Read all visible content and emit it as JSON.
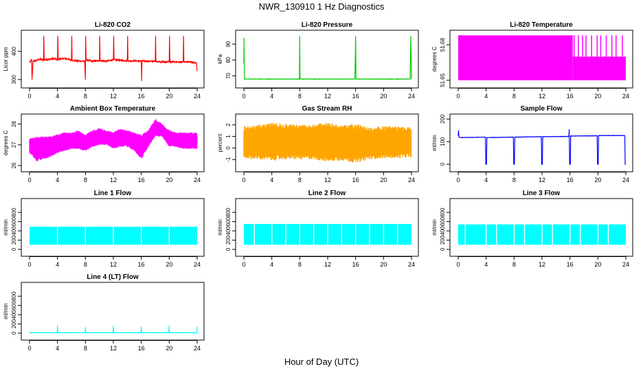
{
  "page": {
    "title": "NWR_130910  1 Hz Diagnostics",
    "xlabel": "Hour of Day (UTC)"
  },
  "chart_data": [
    {
      "type": "line",
      "title": "Li-820 CO2",
      "ylabel": "Licor ppm",
      "xlim": [
        0,
        24
      ],
      "x_ticks": [
        0,
        4,
        8,
        12,
        16,
        20,
        24
      ],
      "ylim": [
        285,
        465
      ],
      "y_ticks": [
        300,
        400
      ],
      "color": "#ff0000",
      "series": [
        {
          "x": [
            0,
            0.3,
            0.35,
            0.5,
            1.0,
            1.5,
            2.0,
            2.05,
            2.1,
            3.0,
            3.5,
            4.0,
            4.05,
            4.1,
            5.0,
            6.0,
            6.05,
            6.1,
            7.0,
            7.9,
            8.0,
            8.05,
            8.1,
            9.0,
            10.0,
            10.05,
            10.1,
            11.0,
            12.0,
            12.05,
            12.1,
            13.0,
            14.0,
            14.05,
            14.1,
            15.0,
            16.0,
            16.05,
            16.1,
            17.0,
            18.0,
            18.05,
            18.1,
            19.0,
            20.0,
            20.05,
            20.1,
            21.0,
            22.0,
            22.05,
            22.1,
            23.0,
            23.9,
            24.0
          ],
          "y": [
            360,
            370,
            300,
            365,
            368,
            372,
            370,
            455,
            370,
            372,
            375,
            370,
            455,
            372,
            375,
            370,
            455,
            368,
            366,
            365,
            300,
            455,
            370,
            365,
            367,
            455,
            367,
            365,
            370,
            455,
            370,
            368,
            367,
            455,
            366,
            367,
            365,
            295,
            366,
            365,
            365,
            455,
            365,
            362,
            363,
            455,
            363,
            362,
            362,
            455,
            362,
            362,
            360,
            330
          ]
        }
      ]
    },
    {
      "type": "line",
      "title": "Li-820 Pressure",
      "ylabel": "kPa",
      "xlim": [
        0,
        24
      ],
      "x_ticks": [
        0,
        4,
        8,
        12,
        16,
        20,
        24
      ],
      "ylim": [
        65,
        97
      ],
      "y_ticks": [
        70,
        80,
        90
      ],
      "color": "#00cc00",
      "series": [
        {
          "x": [
            0,
            0.02,
            0.05,
            0.1,
            1.0,
            7.95,
            8.0,
            8.05,
            15.9,
            16.0,
            16.05,
            23.8,
            23.9,
            24.0
          ],
          "y": [
            78,
            94,
            78,
            68,
            68,
            68,
            95,
            68,
            68,
            95,
            68,
            68,
            95,
            68
          ]
        }
      ]
    },
    {
      "type": "area",
      "title": "Li-820 Temperature",
      "ylabel": "degrees C",
      "xlim": [
        0,
        24
      ],
      "x_ticks": [
        0,
        4,
        8,
        12,
        16,
        20,
        24
      ],
      "ylim": [
        51.647,
        51.69
      ],
      "y_ticks": [
        51.65,
        51.68
      ],
      "color": "#ff00ff",
      "band": {
        "low": 51.65,
        "high_before_16_4": 51.688,
        "high_after_16_4": 51.67
      }
    },
    {
      "type": "area",
      "title": "Ambient Box Temperature",
      "ylabel": "degrees C",
      "xlim": [
        0,
        24
      ],
      "x_ticks": [
        0,
        4,
        8,
        12,
        16,
        20,
        24
      ],
      "ylim": [
        25.9,
        28.35
      ],
      "y_ticks": [
        26.0,
        27.0,
        28.0
      ],
      "color": "#ff00ff",
      "series": [
        {
          "x": [
            0,
            1,
            2,
            3,
            4,
            5,
            6,
            7,
            8,
            9,
            10,
            11,
            12,
            13,
            14,
            15,
            16,
            17,
            18,
            19,
            20,
            21,
            22,
            23,
            24
          ],
          "high": [
            27.3,
            27.4,
            27.4,
            27.4,
            27.5,
            27.6,
            27.6,
            27.7,
            27.5,
            27.7,
            27.8,
            27.7,
            27.6,
            27.8,
            27.7,
            27.6,
            27.5,
            27.7,
            28.25,
            28.0,
            27.7,
            27.6,
            27.6,
            27.6,
            27.6
          ],
          "low": [
            26.6,
            26.2,
            26.3,
            26.4,
            26.6,
            26.7,
            26.8,
            26.8,
            26.7,
            26.9,
            27.0,
            27.0,
            26.8,
            26.9,
            26.9,
            26.7,
            26.3,
            26.9,
            27.4,
            27.4,
            26.9,
            26.9,
            26.8,
            26.8,
            26.8
          ]
        }
      ]
    },
    {
      "type": "area",
      "title": "Gas Stream RH",
      "ylabel": "percent",
      "xlim": [
        0,
        24
      ],
      "x_ticks": [
        0,
        4,
        8,
        12,
        16,
        20,
        24
      ],
      "ylim": [
        -1.7,
        2.7
      ],
      "y_ticks": [
        -1,
        0,
        1,
        2
      ],
      "color": "#ffa500",
      "series": [
        {
          "x": [
            0,
            2,
            4,
            6,
            8,
            10,
            12,
            14,
            16,
            18,
            20,
            22,
            24
          ],
          "high": [
            1.9,
            2.0,
            2.2,
            2.1,
            2.0,
            2.1,
            2.2,
            2.0,
            2.1,
            1.8,
            1.9,
            1.9,
            1.8
          ],
          "low": [
            -0.9,
            -1.0,
            -1.1,
            -1.0,
            -1.0,
            -1.0,
            -1.2,
            -1.1,
            -1.3,
            -1.0,
            -0.9,
            -0.9,
            -0.8
          ]
        }
      ]
    },
    {
      "type": "line",
      "title": "Sample Flow",
      "ylabel": "ml/min",
      "xlim": [
        0,
        24
      ],
      "x_ticks": [
        0,
        4,
        8,
        12,
        16,
        20,
        24
      ],
      "ylim": [
        -15,
        210
      ],
      "y_ticks": [
        0,
        100,
        200
      ],
      "color": "#0000ff",
      "series": [
        {
          "x": [
            0,
            0.05,
            0.1,
            0.3,
            3.9,
            3.95,
            4.05,
            4.1,
            7.9,
            7.95,
            8.05,
            8.1,
            11.9,
            11.95,
            12.05,
            12.1,
            15.85,
            15.9,
            15.95,
            16.05,
            16.1,
            19.9,
            19.95,
            20.05,
            20.1,
            23.85,
            23.9,
            24.0
          ],
          "y": [
            125,
            150,
            120,
            118,
            120,
            0,
            0,
            118,
            120,
            0,
            0,
            120,
            122,
            0,
            0,
            122,
            123,
            155,
            0,
            0,
            125,
            126,
            0,
            0,
            127,
            127,
            0,
            0
          ]
        }
      ]
    },
    {
      "type": "area",
      "title": "Line 1 Flow",
      "ylabel": "ml/min",
      "xlim": [
        0,
        24
      ],
      "x_ticks": [
        0,
        4,
        8,
        12,
        16,
        20,
        24
      ],
      "ylim": [
        -60,
        1040
      ],
      "y_ticks": [
        0,
        200,
        400,
        600,
        800
      ],
      "color": "#00ffff",
      "band": {
        "low": 100,
        "high": 490,
        "gaps_at": [
          4,
          8,
          12,
          16,
          20
        ]
      }
    },
    {
      "type": "area",
      "title": "Line 2 Flow",
      "ylabel": "ml/min",
      "xlim": [
        0,
        24
      ],
      "x_ticks": [
        0,
        4,
        8,
        12,
        16,
        20,
        24
      ],
      "ylim": [
        -60,
        1040
      ],
      "y_ticks": [
        0,
        200,
        400,
        600,
        800
      ],
      "color": "#00ffff",
      "band": {
        "low": 100,
        "high": 550,
        "gaps_at": [
          1.5,
          4,
          6,
          8,
          10,
          12,
          14,
          16,
          18,
          20,
          22
        ]
      }
    },
    {
      "type": "area",
      "title": "Line 3 Flow",
      "ylabel": "ml/min",
      "xlim": [
        0,
        24
      ],
      "x_ticks": [
        0,
        4,
        8,
        12,
        16,
        20,
        24
      ],
      "ylim": [
        -60,
        1040
      ],
      "y_ticks": [
        0,
        200,
        400,
        600,
        800
      ],
      "color": "#00ffff",
      "band": {
        "low": 100,
        "high": 540,
        "gaps_at": [
          1,
          4,
          5.5,
          8,
          9.5,
          12,
          13.5,
          16,
          17.5,
          20,
          21.5
        ]
      }
    },
    {
      "type": "line",
      "title": "Line 4 (LT) Flow",
      "ylabel": "ml/min",
      "xlim": [
        0,
        24
      ],
      "x_ticks": [
        0,
        4,
        8,
        12,
        16,
        20,
        24
      ],
      "ylim": [
        -60,
        1040
      ],
      "y_ticks": [
        0,
        200,
        400,
        600,
        800
      ],
      "color": "#00ffff",
      "series": [
        {
          "x": [
            0,
            3.95,
            4.0,
            4.05,
            7.95,
            8.0,
            8.05,
            11.95,
            12.0,
            12.05,
            15.95,
            16.0,
            16.05,
            19.95,
            20.0,
            20.05,
            23.95,
            24.0
          ],
          "y": [
            10,
            10,
            160,
            10,
            10,
            130,
            10,
            10,
            160,
            10,
            10,
            140,
            10,
            10,
            160,
            10,
            10,
            140
          ]
        }
      ]
    }
  ]
}
